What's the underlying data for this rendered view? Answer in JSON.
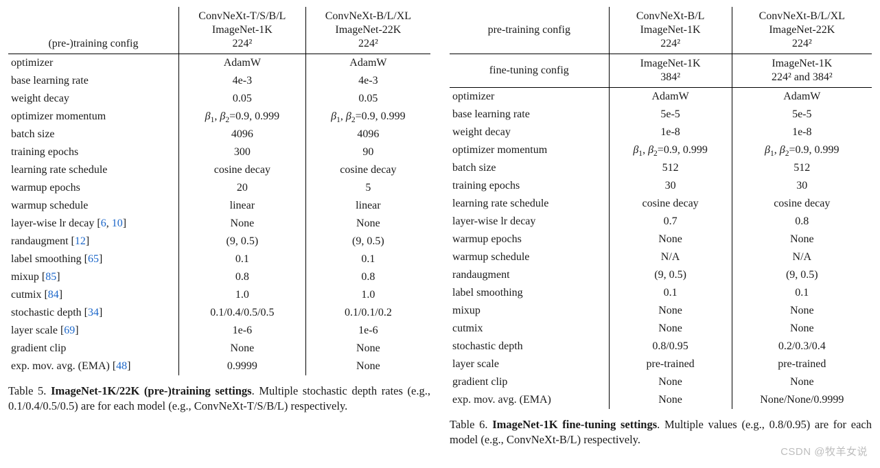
{
  "colors": {
    "text": "#1a1a1a",
    "link": "#1b66c9",
    "rule": "#000000",
    "background": "#ffffff",
    "watermark": "#bdbdbd"
  },
  "typography": {
    "font_family": "Times New Roman",
    "body_fontsize_pt": 12,
    "caption_fontsize_pt": 12,
    "line_height": 1.5
  },
  "left_table": {
    "label_col_header": "(pre-)training config",
    "headers": [
      {
        "model": "ConvNeXt-T/S/B/L",
        "dataset": "ImageNet-1K",
        "res": "224²"
      },
      {
        "model": "ConvNeXt-B/L/XL",
        "dataset": "ImageNet-22K",
        "res": "224²"
      }
    ],
    "rows": [
      {
        "param": "optimizer",
        "v": [
          "AdamW",
          "AdamW"
        ]
      },
      {
        "param": "base learning rate",
        "v": [
          "4e-3",
          "4e-3"
        ]
      },
      {
        "param": "weight decay",
        "v": [
          "0.05",
          "0.05"
        ]
      },
      {
        "param": "optimizer momentum",
        "v": [
          "β₁, β₂=0.9, 0.999",
          "β₁, β₂=0.9, 0.999"
        ],
        "beta": true
      },
      {
        "param": "batch size",
        "v": [
          "4096",
          "4096"
        ]
      },
      {
        "param": "training epochs",
        "v": [
          "300",
          "90"
        ]
      },
      {
        "param": "learning rate schedule",
        "v": [
          "cosine decay",
          "cosine decay"
        ]
      },
      {
        "param": "warmup epochs",
        "v": [
          "20",
          "5"
        ]
      },
      {
        "param": "warmup schedule",
        "v": [
          "linear",
          "linear"
        ]
      },
      {
        "param": "layer-wise lr decay",
        "cites": [
          "6",
          "10"
        ],
        "v": [
          "None",
          "None"
        ]
      },
      {
        "param": "randaugment",
        "cites": [
          "12"
        ],
        "v": [
          "(9, 0.5)",
          "(9, 0.5)"
        ]
      },
      {
        "param": "label smoothing",
        "cites": [
          "65"
        ],
        "v": [
          "0.1",
          "0.1"
        ]
      },
      {
        "param": "mixup",
        "cites": [
          "85"
        ],
        "v": [
          "0.8",
          "0.8"
        ]
      },
      {
        "param": "cutmix",
        "cites": [
          "84"
        ],
        "v": [
          "1.0",
          "1.0"
        ]
      },
      {
        "param": "stochastic depth",
        "cites": [
          "34"
        ],
        "v": [
          "0.1/0.4/0.5/0.5",
          "0.1/0.1/0.2"
        ]
      },
      {
        "param": "layer scale",
        "cites": [
          "69"
        ],
        "v": [
          "1e-6",
          "1e-6"
        ]
      },
      {
        "param": "gradient clip",
        "v": [
          "None",
          "None"
        ]
      },
      {
        "param": "exp. mov. avg. (EMA)",
        "cites": [
          "48"
        ],
        "v": [
          "0.9999",
          "None"
        ]
      }
    ],
    "caption_num": "Table 5.",
    "caption_title": "ImageNet-1K/22K (pre-)training settings",
    "caption_rest": ". Multiple stochastic depth rates (e.g., 0.1/0.4/0.5/0.5) are for each model (e.g., ConvNeXt-T/S/B/L) respectively."
  },
  "right_table": {
    "pretrain_label": "pre-training config",
    "finetune_label": "fine-tuning config",
    "pretrain_headers": [
      {
        "model": "ConvNeXt-B/L",
        "dataset": "ImageNet-1K",
        "res": "224²"
      },
      {
        "model": "ConvNeXt-B/L/XL",
        "dataset": "ImageNet-22K",
        "res": "224²"
      }
    ],
    "finetune_headers": [
      {
        "dataset": "ImageNet-1K",
        "res": "384²"
      },
      {
        "dataset": "ImageNet-1K",
        "res": "224² and 384²"
      }
    ],
    "rows": [
      {
        "param": "optimizer",
        "v": [
          "AdamW",
          "AdamW"
        ]
      },
      {
        "param": "base learning rate",
        "v": [
          "5e-5",
          "5e-5"
        ]
      },
      {
        "param": "weight decay",
        "v": [
          "1e-8",
          "1e-8"
        ]
      },
      {
        "param": "optimizer momentum",
        "v": [
          "β₁, β₂=0.9, 0.999",
          "β₁, β₂=0.9, 0.999"
        ],
        "beta": true
      },
      {
        "param": "batch size",
        "v": [
          "512",
          "512"
        ]
      },
      {
        "param": "training epochs",
        "v": [
          "30",
          "30"
        ]
      },
      {
        "param": "learning rate schedule",
        "v": [
          "cosine decay",
          "cosine decay"
        ]
      },
      {
        "param": "layer-wise lr decay",
        "v": [
          "0.7",
          "0.8"
        ]
      },
      {
        "param": "warmup epochs",
        "v": [
          "None",
          "None"
        ]
      },
      {
        "param": "warmup schedule",
        "v": [
          "N/A",
          "N/A"
        ]
      },
      {
        "param": "randaugment",
        "v": [
          "(9, 0.5)",
          "(9, 0.5)"
        ]
      },
      {
        "param": "label smoothing",
        "v": [
          "0.1",
          "0.1"
        ]
      },
      {
        "param": "mixup",
        "v": [
          "None",
          "None"
        ]
      },
      {
        "param": "cutmix",
        "v": [
          "None",
          "None"
        ]
      },
      {
        "param": "stochastic depth",
        "v": [
          "0.8/0.95",
          "0.2/0.3/0.4"
        ]
      },
      {
        "param": "layer scale",
        "v": [
          "pre-trained",
          "pre-trained"
        ]
      },
      {
        "param": "gradient clip",
        "v": [
          "None",
          "None"
        ]
      },
      {
        "param": "exp. mov. avg. (EMA)",
        "v": [
          "None",
          "None/None/0.9999"
        ]
      }
    ],
    "caption_num": "Table 6.",
    "caption_title": "ImageNet-1K fine-tuning settings",
    "caption_rest": ". Multiple values (e.g., 0.8/0.95) are for each model (e.g., ConvNeXt-B/L) respectively."
  },
  "watermark": "CSDN @牧羊女说"
}
